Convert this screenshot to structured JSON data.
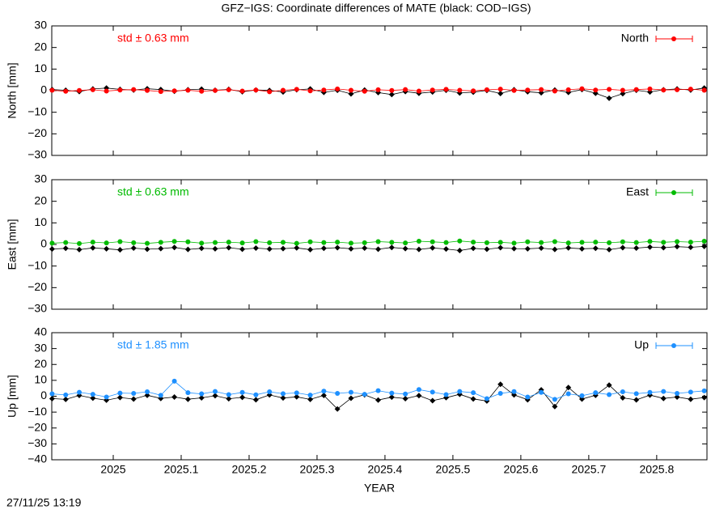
{
  "title": "GFZ−IGS: Coordinate differences of MATE (black: COD−IGS)",
  "timestamp": "27/11/25 13:19",
  "chart_data": [
    {
      "type": "scatter",
      "ylabel": "North [mm]",
      "annotation": "std ± 0.63 mm",
      "annotation_color": "#ff0000",
      "ylim": [
        -30,
        30
      ],
      "yticks": [
        {
          "value": -30,
          "label": "−30"
        },
        {
          "value": -20,
          "label": "−20"
        },
        {
          "value": -10,
          "label": "−10"
        },
        0,
        10,
        20,
        30
      ],
      "series": [
        {
          "color": "#000000",
          "values": [
            0.5,
            0.2,
            -0.4,
            0.8,
            1.2,
            0.6,
            0.3,
            0.9,
            0.5,
            -0.3,
            0.4,
            0.7,
            0.2,
            0.6,
            -0.5,
            0.3,
            0.1,
            -0.6,
            0.4,
            0.8,
            -0.8,
            0.2,
            -1.5,
            0.3,
            -0.9,
            -1.8,
            -0.4,
            -1.2,
            -0.6,
            0.2,
            -1.1,
            -0.7,
            0.1,
            -1.3,
            0.4,
            -0.5,
            -1.0,
            0.3,
            -0.8,
            0.5,
            -1.2,
            -3.5,
            -1.4,
            0.2,
            -0.6,
            0.4,
            0.8,
            0.3,
            1.2
          ]
        },
        {
          "name": "North",
          "color": "#ff0000",
          "values": [
            0.2,
            -0.3,
            0.1,
            0.4,
            -0.2,
            0.3,
            0.5,
            0.1,
            -0.4,
            -0.1,
            0.2,
            -0.3,
            0.1,
            0.4,
            -0.2,
            0.3,
            -0.5,
            0.2,
            0.6,
            -0.1,
            0.3,
            0.8,
            0.2,
            -0.3,
            0.4,
            0.1,
            0.5,
            -0.2,
            0.3,
            0.6,
            0.2,
            -0.1,
            0.4,
            0.7,
            0.1,
            0.3,
            0.5,
            -0.2,
            0.4,
            0.9,
            0.3,
            0.6,
            0.2,
            0.5,
            0.8,
            0.3,
            0.4,
            0.7,
            0.2
          ]
        }
      ]
    },
    {
      "type": "scatter",
      "ylabel": "East [mm]",
      "annotation": "std ± 0.63 mm",
      "annotation_color": "#00bb00",
      "ylim": [
        -30,
        30
      ],
      "yticks": [
        {
          "value": -30,
          "label": "−30"
        },
        {
          "value": -20,
          "label": "−20"
        },
        {
          "value": -10,
          "label": "−10"
        },
        0,
        10,
        20,
        30
      ],
      "series": [
        {
          "color": "#000000",
          "values": [
            -2.1,
            -1.8,
            -2.4,
            -1.6,
            -2.0,
            -2.5,
            -1.7,
            -2.2,
            -1.9,
            -1.4,
            -2.3,
            -1.8,
            -2.0,
            -1.5,
            -2.2,
            -1.7,
            -2.1,
            -1.9,
            -1.6,
            -2.4,
            -1.8,
            -1.5,
            -2.0,
            -1.7,
            -2.2,
            -1.4,
            -1.9,
            -2.3,
            -1.6,
            -2.1,
            -2.8,
            -1.8,
            -2.2,
            -1.5,
            -1.9,
            -2.0,
            -1.7,
            -2.3,
            -1.6,
            -2.0,
            -1.8,
            -2.4,
            -1.5,
            -1.7,
            -1.2,
            -1.5,
            -1.0,
            -1.3,
            -0.9
          ]
        },
        {
          "name": "East",
          "color": "#00bb00",
          "values": [
            0.6,
            0.9,
            0.4,
            1.1,
            0.7,
            1.3,
            0.8,
            0.5,
            1.0,
            1.4,
            1.2,
            0.6,
            0.9,
            1.1,
            0.7,
            1.3,
            0.8,
            1.0,
            0.5,
            1.2,
            0.9,
            1.1,
            0.6,
            0.8,
            1.3,
            1.0,
            0.7,
            1.5,
            1.2,
            0.9,
            1.6,
            1.1,
            0.8,
            1.0,
            0.6,
            1.2,
            0.9,
            1.3,
            0.7,
            1.0,
            1.1,
            0.8,
            1.2,
            0.9,
            1.4,
            1.0,
            1.3,
            1.1,
            1.5
          ]
        }
      ]
    },
    {
      "type": "scatter",
      "ylabel": "Up [mm]",
      "xlabel": "YEAR",
      "annotation": "std ± 1.85 mm",
      "annotation_color": "#1e90ff",
      "ylim": [
        -40,
        40
      ],
      "yticks": [
        {
          "value": -40,
          "label": "−40"
        },
        {
          "value": -30,
          "label": "−30"
        },
        {
          "value": -20,
          "label": "−20"
        },
        {
          "value": -10,
          "label": "−10"
        },
        0,
        10,
        20,
        30,
        40
      ],
      "xlim": [
        2024.9095,
        2025.874
      ],
      "xticks": [
        2025,
        2025.1,
        2025.2,
        2025.3,
        2025.4,
        2025.5,
        2025.6,
        2025.7,
        2025.8
      ],
      "x": [
        2024.91,
        2024.93,
        2024.95,
        2024.97,
        2024.99,
        2025.01,
        2025.03,
        2025.05,
        2025.07,
        2025.09,
        2025.11,
        2025.13,
        2025.15,
        2025.17,
        2025.19,
        2025.21,
        2025.23,
        2025.25,
        2025.27,
        2025.29,
        2025.31,
        2025.33,
        2025.35,
        2025.37,
        2025.39,
        2025.41,
        2025.43,
        2025.45,
        2025.47,
        2025.49,
        2025.51,
        2025.53,
        2025.55,
        2025.57,
        2025.59,
        2025.61,
        2025.63,
        2025.65,
        2025.67,
        2025.69,
        2025.71,
        2025.73,
        2025.75,
        2025.77,
        2025.79,
        2025.81,
        2025.83,
        2025.85,
        2025.87
      ],
      "series": [
        {
          "color": "#000000",
          "values": [
            -1.5,
            -2.0,
            0.5,
            -1.2,
            -2.5,
            -0.8,
            -1.8,
            0.6,
            -1.4,
            -0.5,
            -1.9,
            -1.0,
            0.3,
            -1.6,
            -0.7,
            -2.2,
            0.8,
            -1.1,
            -0.4,
            -2.0,
            0.5,
            -8.0,
            -1.3,
            0.9,
            -2.4,
            -0.6,
            -1.5,
            0.4,
            -2.8,
            -0.9,
            1.2,
            -1.7,
            -3.0,
            7.5,
            0.8,
            -2.2,
            4.0,
            -6.5,
            5.5,
            -1.8,
            0.6,
            7.0,
            -1.0,
            -2.3,
            0.7,
            -1.4,
            -0.5,
            -1.9,
            -0.8
          ]
        },
        {
          "name": "Up",
          "color": "#1e90ff",
          "values": [
            1.5,
            0.8,
            2.5,
            1.2,
            -0.5,
            2.0,
            1.8,
            2.8,
            0.6,
            9.5,
            2.2,
            1.5,
            3.0,
            1.0,
            2.4,
            0.9,
            2.8,
            1.6,
            2.1,
            0.7,
            3.2,
            1.8,
            2.5,
            1.2,
            3.5,
            2.0,
            1.4,
            4.2,
            2.6,
            1.0,
            3.0,
            2.2,
            -1.5,
            1.8,
            2.9,
            -0.5,
            2.4,
            -2.0,
            1.5,
            0.3,
            2.2,
            1.0,
            2.8,
            1.6,
            2.4,
            3.0,
            1.8,
            2.6,
            3.4
          ]
        }
      ]
    }
  ]
}
